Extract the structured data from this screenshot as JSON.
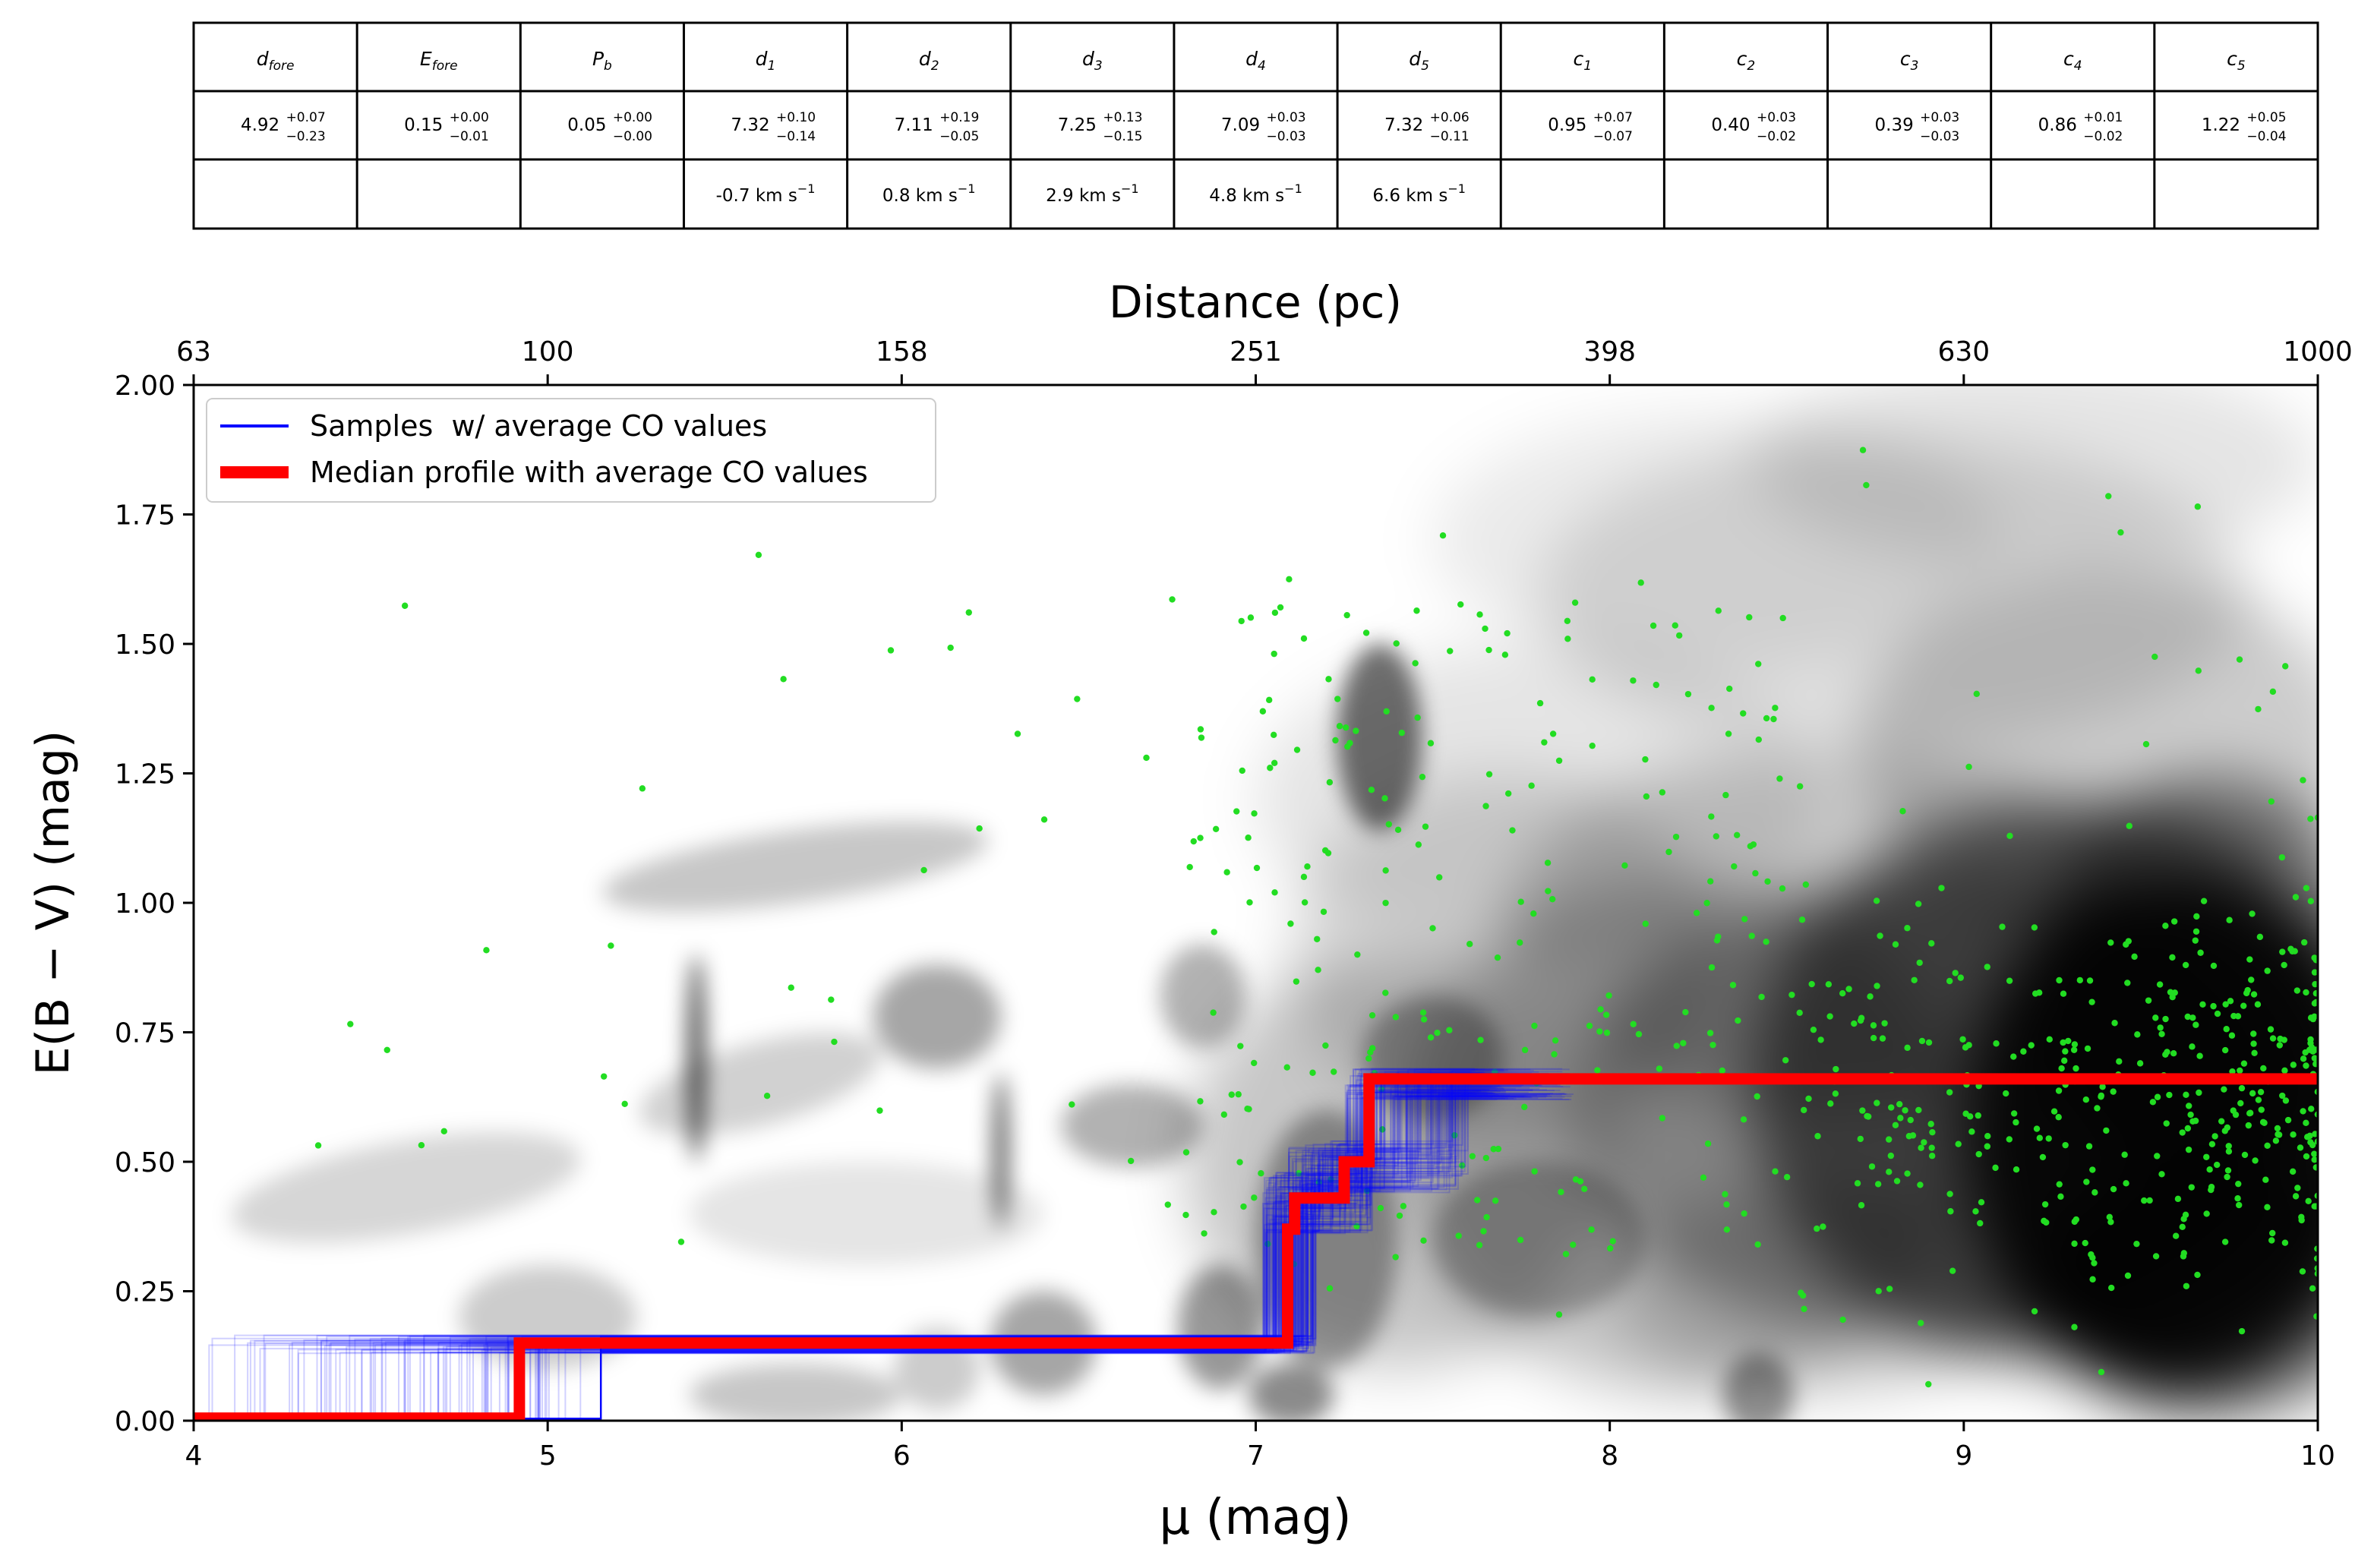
{
  "param_table": {
    "headers": [
      {
        "base": "d",
        "sub": "fore"
      },
      {
        "base": "E",
        "sub": "fore"
      },
      {
        "base": "P",
        "sub": "b"
      },
      {
        "base": "d",
        "sub": "1"
      },
      {
        "base": "d",
        "sub": "2"
      },
      {
        "base": "d",
        "sub": "3"
      },
      {
        "base": "d",
        "sub": "4"
      },
      {
        "base": "d",
        "sub": "5"
      },
      {
        "base": "c",
        "sub": "1"
      },
      {
        "base": "c",
        "sub": "2"
      },
      {
        "base": "c",
        "sub": "3"
      },
      {
        "base": "c",
        "sub": "4"
      },
      {
        "base": "c",
        "sub": "5"
      }
    ],
    "values": [
      {
        "v": "4.92",
        "up": "+0.07",
        "lo": "−0.23"
      },
      {
        "v": "0.15",
        "up": "+0.00",
        "lo": "−0.01"
      },
      {
        "v": "0.05",
        "up": "+0.00",
        "lo": "−0.00"
      },
      {
        "v": "7.32",
        "up": "+0.10",
        "lo": "−0.14"
      },
      {
        "v": "7.11",
        "up": "+0.19",
        "lo": "−0.05"
      },
      {
        "v": "7.25",
        "up": "+0.13",
        "lo": "−0.15"
      },
      {
        "v": "7.09",
        "up": "+0.03",
        "lo": "−0.03"
      },
      {
        "v": "7.32",
        "up": "+0.06",
        "lo": "−0.11"
      },
      {
        "v": "0.95",
        "up": "+0.07",
        "lo": "−0.07"
      },
      {
        "v": "0.40",
        "up": "+0.03",
        "lo": "−0.02"
      },
      {
        "v": "0.39",
        "up": "+0.03",
        "lo": "−0.03"
      },
      {
        "v": "0.86",
        "up": "+0.01",
        "lo": "−0.02"
      },
      {
        "v": "1.22",
        "up": "+0.05",
        "lo": "−0.04"
      }
    ],
    "velocities": [
      "",
      "",
      "",
      "-0.7 km s",
      "0.8 km s",
      "2.9 km s",
      "4.8 km s",
      "6.6 km s",
      "",
      "",
      "",
      "",
      ""
    ],
    "velocity_exponent": "−1"
  },
  "chart_data": {
    "type": "line",
    "xlabel": "μ (mag)",
    "ylabel": "E(B − V) (mag)",
    "top_xlabel": "Distance (pc)",
    "xlim": [
      4,
      10
    ],
    "ylim": [
      0,
      2
    ],
    "x_ticks": [
      4,
      5,
      6,
      7,
      8,
      9,
      10
    ],
    "y_ticks": [
      "0.00",
      "0.25",
      "0.50",
      "0.75",
      "1.00",
      "1.25",
      "1.50",
      "1.75",
      "2.00"
    ],
    "top_ticks": [
      {
        "mu": 4,
        "label": "63"
      },
      {
        "mu": 5,
        "label": "100"
      },
      {
        "mu": 6,
        "label": "158"
      },
      {
        "mu": 7,
        "label": "251"
      },
      {
        "mu": 8,
        "label": "398"
      },
      {
        "mu": 9,
        "label": "630"
      },
      {
        "mu": 10,
        "label": "1000"
      }
    ],
    "legend_position": "top-left",
    "series": [
      {
        "name": "Samples  w/ average CO values",
        "color": "#0000ff"
      },
      {
        "name": "Median profile with average CO values",
        "color": "#ff0000",
        "x": [
          4.0,
          4.92,
          4.92,
          7.09,
          7.09,
          7.11,
          7.11,
          7.25,
          7.25,
          7.32,
          7.32,
          10.0
        ],
        "y": [
          0.005,
          0.005,
          0.15,
          0.15,
          0.37,
          0.37,
          0.43,
          0.43,
          0.5,
          0.5,
          0.66,
          0.66
        ]
      }
    ],
    "star_color": "#22dd22",
    "background_density": "grayscale"
  }
}
